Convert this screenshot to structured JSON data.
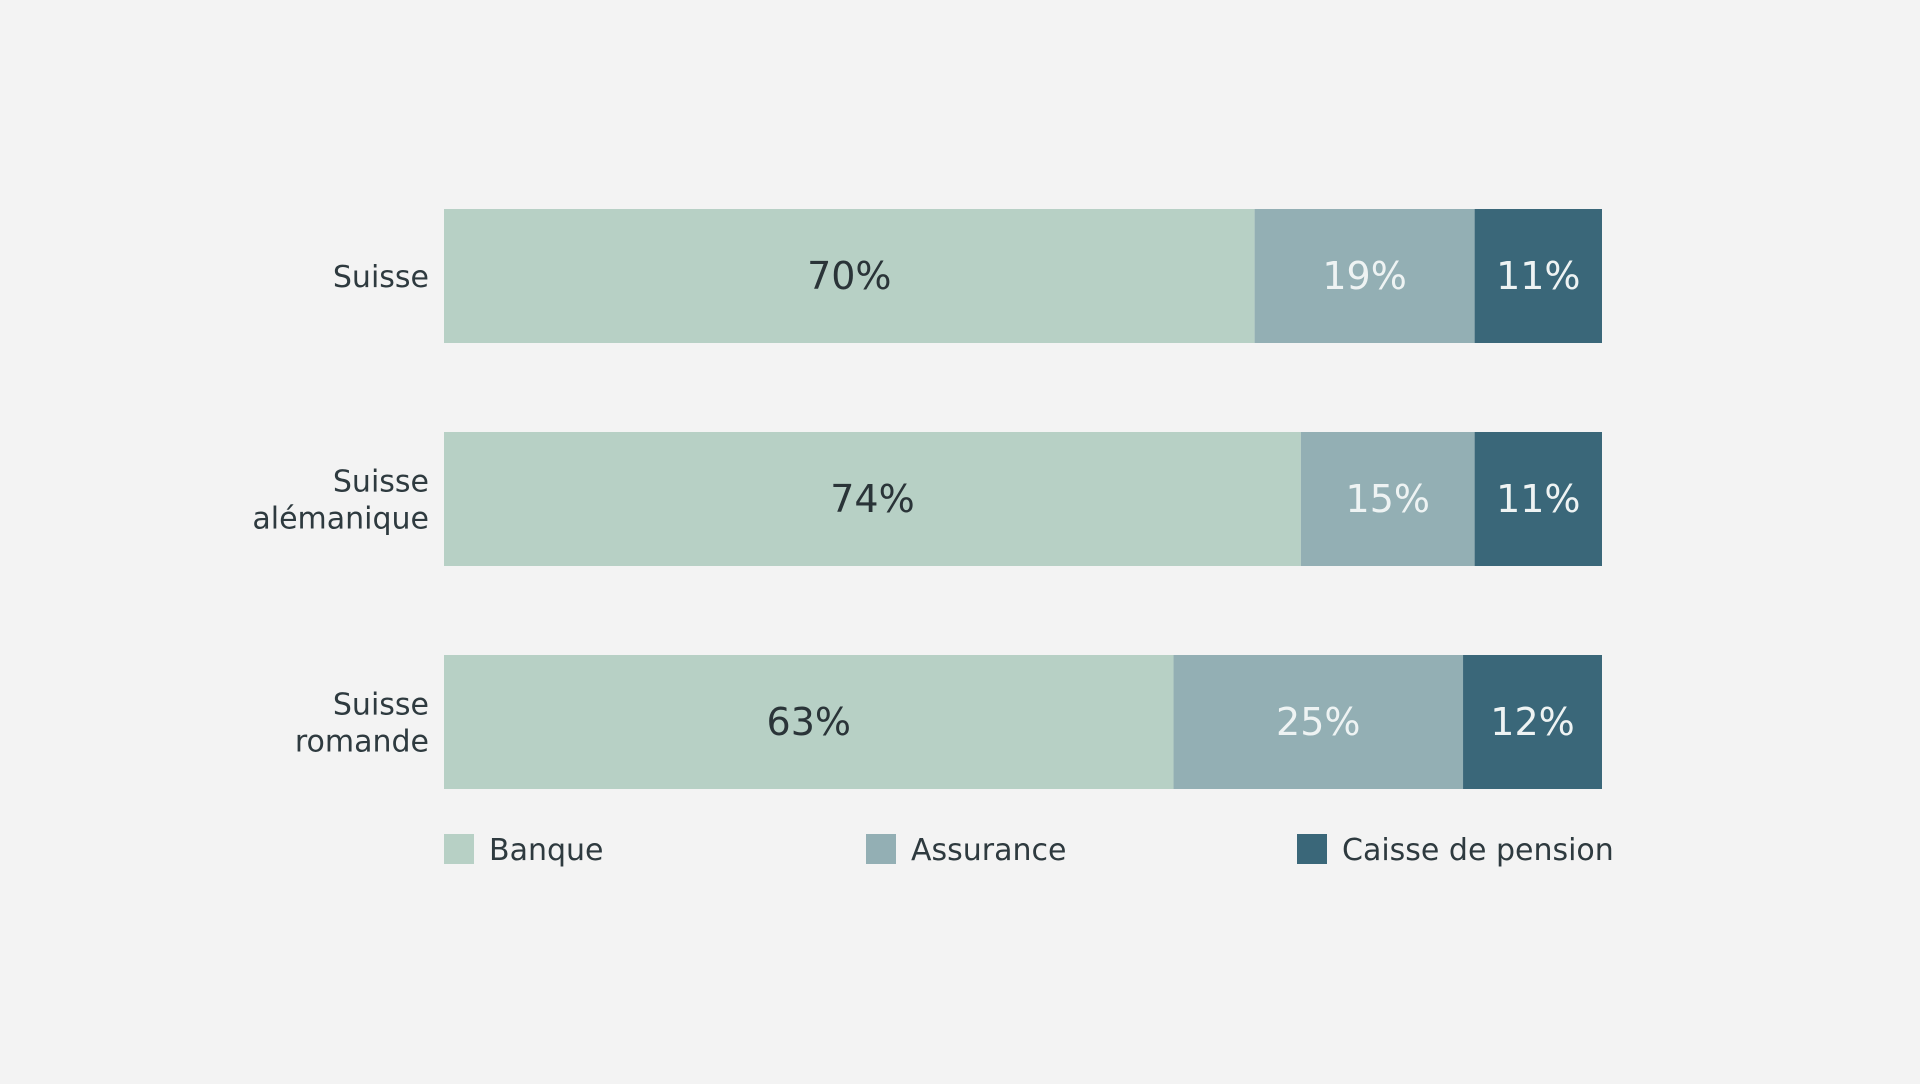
{
  "chart_data": {
    "type": "bar",
    "orientation": "horizontal",
    "stacked": true,
    "value_format": "percent",
    "categories": [
      [
        "Suisse"
      ],
      [
        "Suisse",
        "alémanique"
      ],
      [
        "Suisse",
        "romande"
      ]
    ],
    "series": [
      {
        "name": "Banque",
        "values": [
          70,
          74,
          63
        ],
        "color": "#b7d0c5",
        "label_color": "#2a3438"
      },
      {
        "name": "Assurance",
        "values": [
          19,
          15,
          25
        ],
        "color": "#93afb4",
        "label_color": "#eef3f3"
      },
      {
        "name": "Caisse de pension",
        "values": [
          11,
          11,
          12
        ],
        "color": "#3a6779",
        "label_color": "#eef3f3"
      }
    ],
    "xlim": [
      0,
      100
    ],
    "grid": false,
    "legend_position": "bottom"
  },
  "colors": {
    "background": "#f3f3f3",
    "text": "#2e3a3f"
  }
}
